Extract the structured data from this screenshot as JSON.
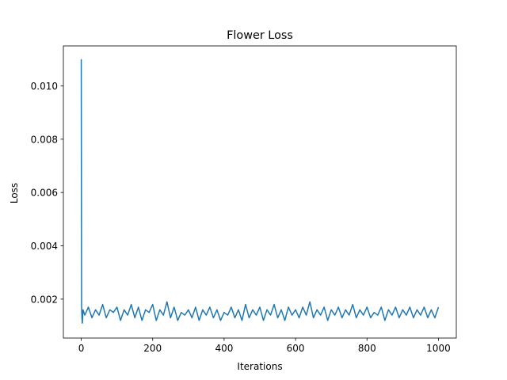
{
  "chart_data": {
    "type": "line",
    "title": "Flower Loss",
    "xlabel": "Iterations",
    "ylabel": "Loss",
    "xlim": [
      -50,
      1050
    ],
    "ylim": [
      0.00054,
      0.0115
    ],
    "xticks": [
      0,
      200,
      400,
      600,
      800,
      1000
    ],
    "xtick_labels": [
      "0",
      "200",
      "400",
      "600",
      "800",
      "1000"
    ],
    "yticks": [
      0.002,
      0.004,
      0.006,
      0.008,
      0.01
    ],
    "ytick_labels": [
      "0.002",
      "0.004",
      "0.006",
      "0.008",
      "0.010"
    ],
    "grid": false,
    "legend": null,
    "series": [
      {
        "color": "#1f77b4",
        "x": [
          0,
          1,
          2,
          3,
          5,
          10,
          20,
          30,
          40,
          50,
          60,
          70,
          80,
          90,
          100,
          110,
          120,
          130,
          140,
          150,
          160,
          170,
          180,
          190,
          200,
          210,
          220,
          230,
          240,
          250,
          260,
          270,
          280,
          290,
          300,
          310,
          320,
          330,
          340,
          350,
          360,
          370,
          380,
          390,
          400,
          410,
          420,
          430,
          440,
          450,
          460,
          470,
          480,
          490,
          500,
          510,
          520,
          530,
          540,
          550,
          560,
          570,
          580,
          590,
          600,
          610,
          620,
          630,
          640,
          650,
          660,
          670,
          680,
          690,
          700,
          710,
          720,
          730,
          740,
          750,
          760,
          770,
          780,
          790,
          800,
          810,
          820,
          830,
          840,
          850,
          860,
          870,
          880,
          890,
          900,
          910,
          920,
          930,
          940,
          950,
          960,
          970,
          980,
          990,
          1000
        ],
        "y": [
          0.011,
          0.0017,
          0.0013,
          0.0011,
          0.0016,
          0.0014,
          0.0017,
          0.0013,
          0.0016,
          0.0014,
          0.0018,
          0.0013,
          0.0016,
          0.0015,
          0.0017,
          0.0012,
          0.0016,
          0.0014,
          0.0018,
          0.0013,
          0.0017,
          0.0012,
          0.0016,
          0.0015,
          0.0018,
          0.0012,
          0.0016,
          0.0014,
          0.0019,
          0.0013,
          0.0017,
          0.0012,
          0.0015,
          0.0014,
          0.0016,
          0.0013,
          0.0017,
          0.0012,
          0.0016,
          0.0014,
          0.0017,
          0.0013,
          0.0016,
          0.0012,
          0.0015,
          0.0014,
          0.0017,
          0.0013,
          0.0016,
          0.0012,
          0.0018,
          0.0013,
          0.0016,
          0.0014,
          0.0017,
          0.0012,
          0.0016,
          0.0014,
          0.0018,
          0.0013,
          0.0016,
          0.0012,
          0.0017,
          0.0014,
          0.0016,
          0.0013,
          0.0017,
          0.0014,
          0.0019,
          0.0013,
          0.0016,
          0.0014,
          0.0017,
          0.0012,
          0.0016,
          0.0014,
          0.0017,
          0.0013,
          0.0016,
          0.0014,
          0.0018,
          0.0013,
          0.0016,
          0.0014,
          0.0017,
          0.0013,
          0.0015,
          0.0014,
          0.0017,
          0.0012,
          0.0016,
          0.0014,
          0.0017,
          0.0013,
          0.0016,
          0.0014,
          0.0017,
          0.0013,
          0.0016,
          0.0014,
          0.0017,
          0.0013,
          0.0016,
          0.0013,
          0.0017
        ]
      }
    ]
  }
}
